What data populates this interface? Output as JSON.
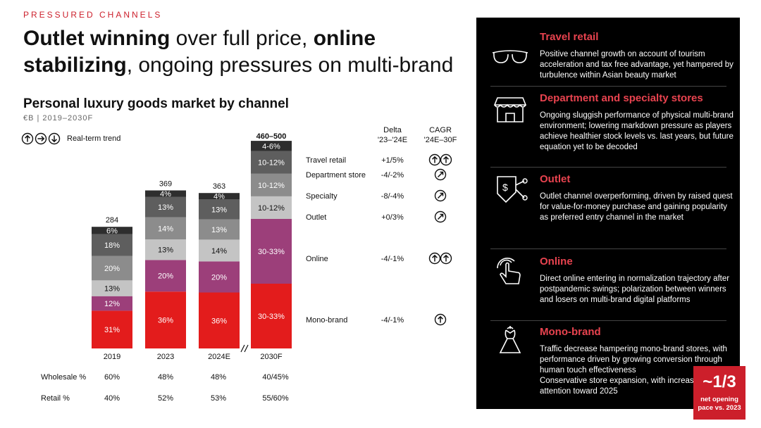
{
  "eyebrow": "PRESSURED CHANNELS",
  "headline": {
    "p1_bold": "Outlet winning",
    "p2": " over full price, ",
    "p3_bold": "online stabilizing",
    "p4": ", ongoing pressures on multi-brand"
  },
  "subtitle": "Personal luxury goods market by channel",
  "units": "€B | 2019–2030F",
  "legend_label": "Real-term trend",
  "colors": {
    "mono_brand": "#e31c1c",
    "online": "#9c3f7a",
    "outlet": "#c4c4c4",
    "specialty": "#8c8c8c",
    "department": "#5e5e5e",
    "travel": "#2e2e2e",
    "accent": "#cc1f2b"
  },
  "chart_data": {
    "type": "bar",
    "stacked": true,
    "categories": [
      "2019",
      "2023",
      "2024E",
      "2030F"
    ],
    "totals": [
      "284",
      "369",
      "363",
      "460–500"
    ],
    "total_values": [
      284,
      369,
      363,
      480
    ],
    "series": [
      {
        "name": "Mono-brand",
        "shares": [
          31,
          36,
          36,
          31.5
        ],
        "labels": [
          "31%",
          "36%",
          "36%",
          "30-33%"
        ]
      },
      {
        "name": "Online",
        "shares": [
          12,
          20,
          20,
          31.5
        ],
        "labels": [
          "12%",
          "20%",
          "20%",
          "30-33%"
        ]
      },
      {
        "name": "Outlet",
        "shares": [
          13,
          13,
          14,
          11
        ],
        "labels": [
          "13%",
          "13%",
          "14%",
          "10-12%"
        ]
      },
      {
        "name": "Specialty",
        "shares": [
          20,
          14,
          13,
          11
        ],
        "labels": [
          "20%",
          "14%",
          "13%",
          "10-12%"
        ]
      },
      {
        "name": "Department store",
        "shares": [
          18,
          13,
          13,
          11
        ],
        "labels": [
          "18%",
          "13%",
          "13%",
          "10-12%"
        ]
      },
      {
        "name": "Travel retail",
        "shares": [
          6,
          4,
          4,
          5
        ],
        "labels": [
          "6%",
          "4%",
          "4%",
          "4-6%"
        ]
      }
    ],
    "axis_break_between": [
      "2024E",
      "2030F"
    ]
  },
  "table": {
    "delta_header": "Delta\n'23–'24E",
    "cagr_header": "CAGR\n'24E–30F",
    "rows": [
      {
        "channel": "Travel retail",
        "delta": "+1/5%",
        "trend": [
          "up",
          "up"
        ]
      },
      {
        "channel": "Department store",
        "delta": "-4/-2%",
        "trend": [
          "diag"
        ]
      },
      {
        "channel": "Specialty",
        "delta": "-8/-4%",
        "trend": [
          "diag"
        ]
      },
      {
        "channel": "Outlet",
        "delta": "+0/3%",
        "trend": [
          "diag"
        ]
      },
      {
        "channel": "Online",
        "delta": "-4/-1%",
        "trend": [
          "up",
          "up"
        ]
      },
      {
        "channel": "Mono-brand",
        "delta": "-4/-1%",
        "trend": [
          "up"
        ]
      }
    ]
  },
  "mix": {
    "wholesale_label": "Wholesale %",
    "retail_label": "Retail %",
    "wholesale": [
      "60%",
      "48%",
      "48%",
      "40/45%"
    ],
    "retail": [
      "40%",
      "52%",
      "53%",
      "55/60%"
    ]
  },
  "panel": [
    {
      "icon": "sunglasses-icon",
      "title": "Travel retail",
      "body": "Positive channel growth on account of tourism acceleration and tax free advantage, yet hampered by turbulence within Asian beauty market"
    },
    {
      "icon": "storefront-icon",
      "title": "Department and specialty stores",
      "body": "Ongoing sluggish performance of physical multi-brand environment; lowering markdown pressure as players achieve healthier stock levels vs. last years, but future equation yet to be decoded"
    },
    {
      "icon": "price-tag-icon",
      "title": "Outlet",
      "body": "Outlet channel overperforming, driven by raised quest for value-for-money purchase and gaining popularity as preferred entry channel in the market"
    },
    {
      "icon": "touch-click-icon",
      "title": "Online",
      "body": "Direct online entering in normalization trajectory after postpandemic swings; polarization between winners and losers on multi-brand digital platforms"
    },
    {
      "icon": "dress-icon",
      "title": "Mono-brand",
      "body": "Traffic decrease hampering mono-brand stores, with performance driven by growing conversion through human touch effectiveness\nConservative store expansion, with increased attention toward 2025"
    }
  ],
  "callout": {
    "value": "~1/3",
    "label": "net opening pace vs. 2023"
  }
}
